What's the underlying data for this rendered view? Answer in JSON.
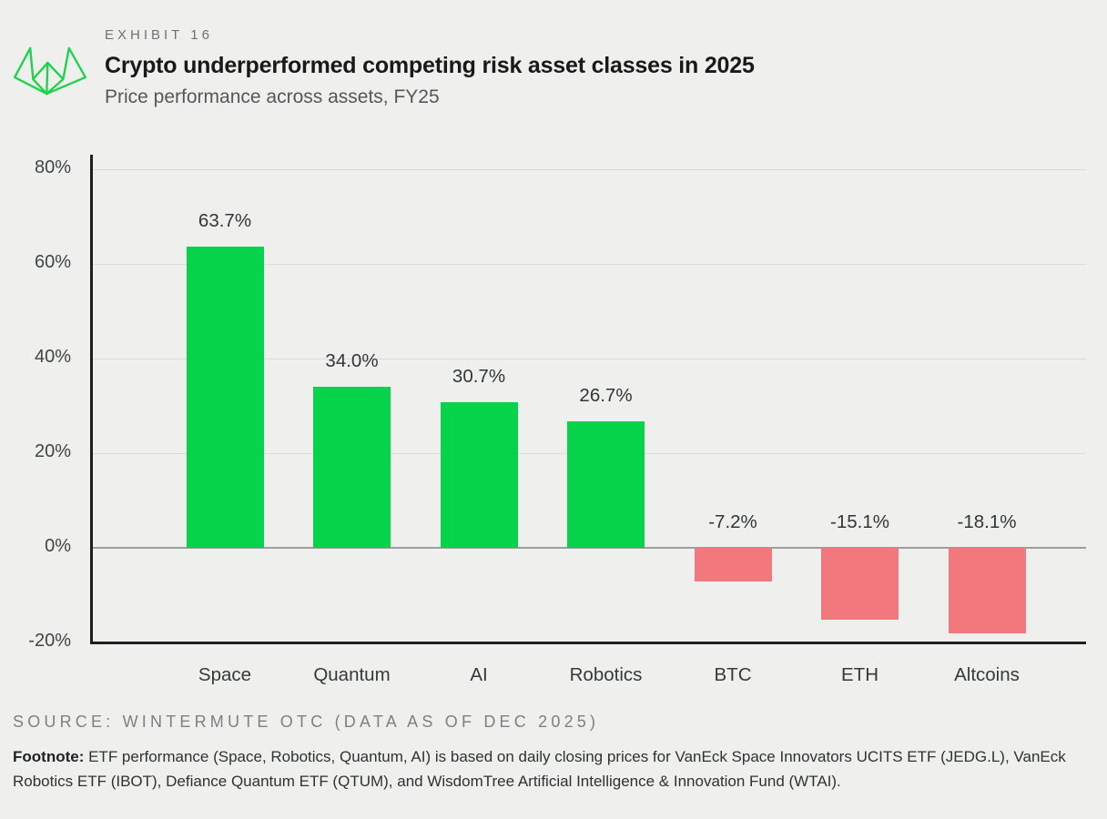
{
  "header": {
    "exhibit_label": "EXHIBIT 16",
    "title": "Crypto underperformed competing risk asset classes in 2025",
    "subtitle": "Price performance across assets, FY25",
    "logo_color": "#1ed24c"
  },
  "chart_data": {
    "type": "bar",
    "title": "Crypto underperformed competing risk asset classes in 2025",
    "subtitle": "Price performance across assets, FY25",
    "categories": [
      "Space",
      "Quantum",
      "AI",
      "Robotics",
      "BTC",
      "ETH",
      "Altcoins"
    ],
    "values": [
      63.7,
      34.0,
      30.7,
      26.7,
      -7.2,
      -15.1,
      -18.1
    ],
    "value_labels": [
      "63.7%",
      "34.0%",
      "30.7%",
      "26.7%",
      "-7.2%",
      "-15.1%",
      "-18.1%"
    ],
    "xlabel": "",
    "ylabel": "",
    "ylim": [
      -20,
      80
    ],
    "yticks": [
      80,
      60,
      40,
      20,
      0,
      -20
    ],
    "ytick_labels": [
      "80%",
      "60%",
      "40%",
      "20%",
      "0%",
      "-20%"
    ],
    "grid": "horizontal-on",
    "legend": "none",
    "positive_color": "#06d24a",
    "negative_color": "#f1797e",
    "background_color": "#efefed"
  },
  "footer": {
    "source": "SOURCE: WINTERMUTE OTC (DATA AS OF DEC 2025)",
    "footnote_label": "Footnote:",
    "footnote_text": "ETF performance (Space, Robotics, Quantum, AI) is based on daily closing prices for VanEck Space Innovators UCITS ETF (JEDG.L), VanEck Robotics ETF (IBOT), Defiance Quantum ETF (QTUM), and WisdomTree Artificial Intelligence & Innovation Fund (WTAI)."
  }
}
